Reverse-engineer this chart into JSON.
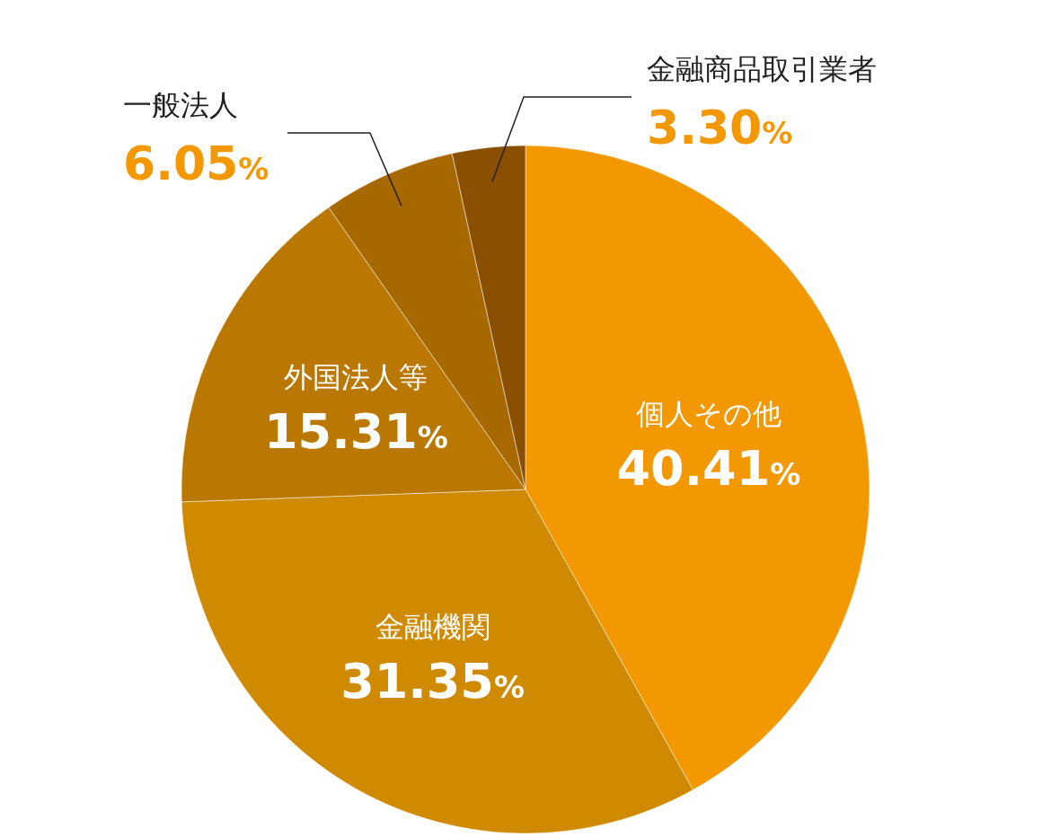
{
  "chart_data": {
    "type": "pie",
    "categories": [
      "個人その他",
      "金融機関",
      "外国法人等",
      "一般法人",
      "金融商品取引業者"
    ],
    "values": [
      40.41,
      31.35,
      15.31,
      6.05,
      3.3
    ],
    "colors": [
      "#f39800",
      "#cf8a00",
      "#bb7800",
      "#a86800",
      "#8a4f00"
    ],
    "value_labels": [
      "40.41%",
      "31.35%",
      "15.31%",
      "6.05%",
      "3.30%"
    ]
  }
}
